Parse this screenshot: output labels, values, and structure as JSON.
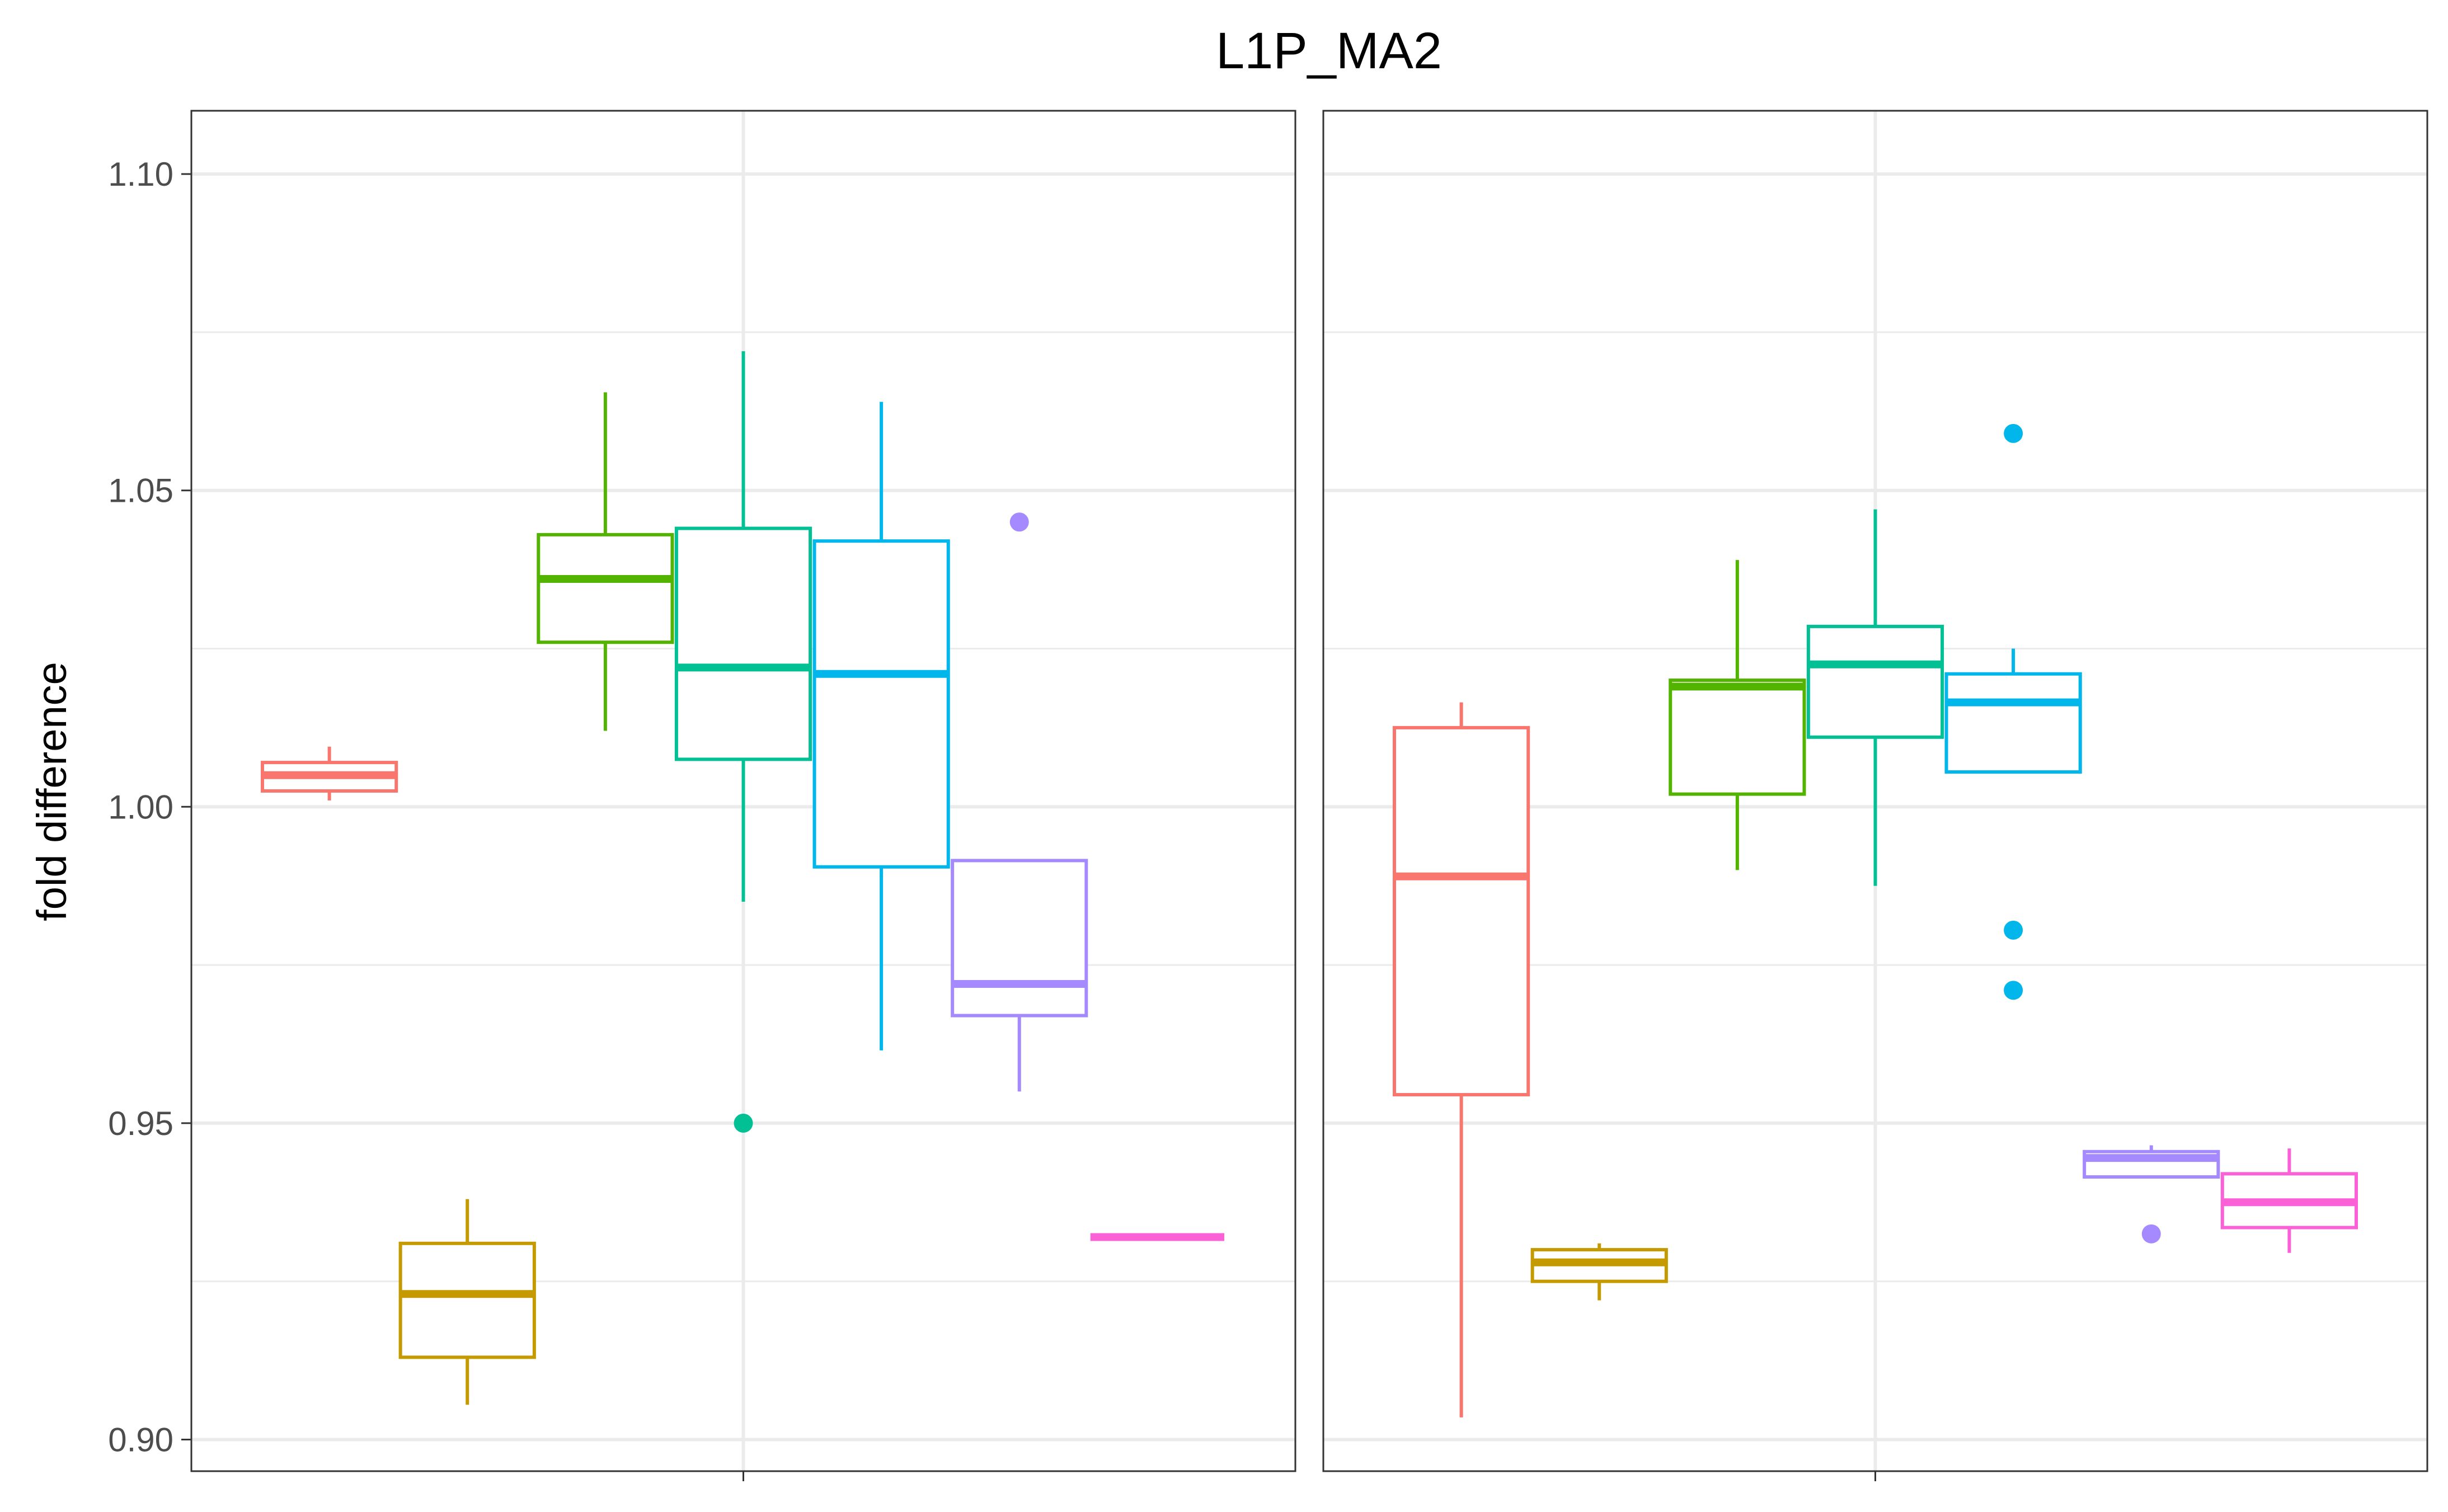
{
  "chart_data": {
    "type": "boxplot",
    "title": "L1P_MA2",
    "ylabel": "fold difference",
    "ylim": [
      0.895,
      1.11
    ],
    "y_ticks": [
      0.9,
      0.95,
      1.0,
      1.05,
      1.1
    ],
    "y_tick_labels": [
      "0.90",
      "0.95",
      "1.00",
      "1.05",
      "1.10"
    ],
    "grid": true,
    "legend": "none",
    "group_colors": [
      "#F8766D",
      "#C49A00",
      "#53B400",
      "#00C094",
      "#00B6EB",
      "#A58AFF",
      "#FB61D7"
    ],
    "panels": [
      {
        "boxes": [
          {
            "min": 1.001,
            "q1": 1.0025,
            "median": 1.005,
            "q3": 1.007,
            "max": 1.0095,
            "outliers": []
          },
          {
            "min": 0.9055,
            "q1": 0.913,
            "median": 0.923,
            "q3": 0.931,
            "max": 0.938,
            "outliers": []
          },
          {
            "min": 1.012,
            "q1": 1.026,
            "median": 1.036,
            "q3": 1.043,
            "max": 1.0655,
            "outliers": []
          },
          {
            "min": 0.985,
            "q1": 1.0075,
            "median": 1.022,
            "q3": 1.044,
            "max": 1.072,
            "outliers": [
              0.95
            ]
          },
          {
            "min": 0.9615,
            "q1": 0.9905,
            "median": 1.021,
            "q3": 1.042,
            "max": 1.064,
            "outliers": []
          },
          {
            "min": 0.955,
            "q1": 0.967,
            "median": 0.972,
            "q3": 0.9915,
            "max": 0.9915,
            "outliers": [
              1.045
            ]
          },
          {
            "min": 0.932,
            "q1": 0.932,
            "median": 0.932,
            "q3": 0.932,
            "max": 0.932,
            "outliers": []
          }
        ]
      },
      {
        "boxes": [
          {
            "min": 0.9035,
            "q1": 0.9545,
            "median": 0.989,
            "q3": 1.0125,
            "max": 1.0165,
            "outliers": []
          },
          {
            "min": 0.922,
            "q1": 0.925,
            "median": 0.928,
            "q3": 0.93,
            "max": 0.931,
            "outliers": []
          },
          {
            "min": 0.99,
            "q1": 1.002,
            "median": 1.019,
            "q3": 1.02,
            "max": 1.039,
            "outliers": []
          },
          {
            "min": 0.9875,
            "q1": 1.011,
            "median": 1.0225,
            "q3": 1.0285,
            "max": 1.047,
            "outliers": []
          },
          {
            "min": 1.0055,
            "q1": 1.0055,
            "median": 1.0165,
            "q3": 1.021,
            "max": 1.025,
            "outliers": [
              1.059,
              0.9805,
              0.971
            ]
          },
          {
            "min": 0.9415,
            "q1": 0.9415,
            "median": 0.9445,
            "q3": 0.9455,
            "max": 0.9465,
            "outliers": [
              0.9325
            ]
          },
          {
            "min": 0.9295,
            "q1": 0.9335,
            "median": 0.9375,
            "q3": 0.942,
            "max": 0.946,
            "outliers": []
          }
        ]
      }
    ]
  }
}
